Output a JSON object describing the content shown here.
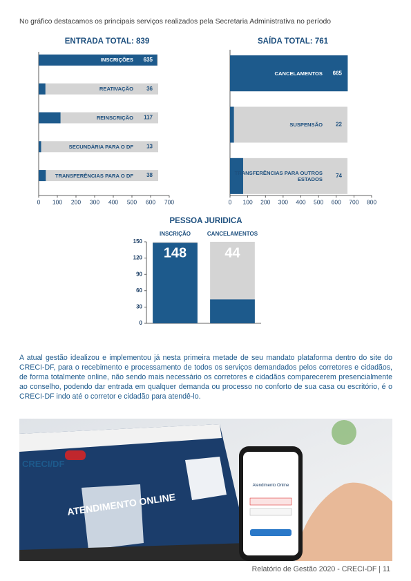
{
  "intro": "No gráfico destacamos os principais serviços realizados pela Secretaria Administrativa no período",
  "chart_data": [
    {
      "type": "barh",
      "title": "ENTRADA TOTAL: 839",
      "categories": [
        "INSCRIÇÕES",
        "REATIVAÇÃO",
        "REINSCRIÇÃO",
        "SECUNDÁRIA PARA O DF",
        "TRANSFERÊNCIAS PARA O DF"
      ],
      "values": [
        635,
        36,
        117,
        13,
        38
      ],
      "color": "#1d5a8c",
      "track_color": "#d4d4d4",
      "xlim": [
        0,
        700
      ],
      "xticks": [
        0,
        100,
        200,
        300,
        400,
        500,
        600,
        700
      ]
    },
    {
      "type": "barh",
      "title": "SAÍDA TOTAL: 761",
      "categories": [
        "CANCELAMENTOS",
        "SUSPENSÃO",
        "TRANSFERÊNCIAS PARA OUTROS ESTADOS"
      ],
      "values": [
        665,
        22,
        74
      ],
      "color": "#1d5a8c",
      "track_color": "#d4d4d4",
      "xlim": [
        0,
        800
      ],
      "xticks": [
        0,
        100,
        200,
        300,
        400,
        500,
        600,
        700,
        800
      ]
    },
    {
      "type": "bar",
      "title": "PESSOA JURIDICA",
      "categories": [
        "INSCRIÇÃO",
        "CANCELAMENTOS"
      ],
      "values": [
        148,
        44
      ],
      "color": "#1d5a8c",
      "track_color": "#d4d4d4",
      "ylim": [
        0,
        150
      ],
      "yticks": [
        0,
        30,
        60,
        90,
        120,
        150
      ]
    }
  ],
  "paragraph": "A atual gestão idealizou e implementou já nesta primeira metade de seu mandato plataforma dentro do site do CRECI-DF, para o recebimento e processamento de todos os serviços demandados pelos corretores e cidadãos, de forma totalmente online, não sendo mais necessário os corretores e cidadãos comparecerem presencialmente ao conselho, podendo dar entrada em qualquer demanda ou processo no conforto de sua casa ou escritório, é o CRECI-DF indo até o corretor e cidadão para atendê-lo.",
  "image": {
    "laptop_heading": "ATENDIMENTO ONLINE",
    "laptop_logo": "CRECI/DF",
    "phone_heading": "Atendimento Online"
  },
  "footer": "Relatório de Gestão 2020 - CRECI-DF | 11"
}
